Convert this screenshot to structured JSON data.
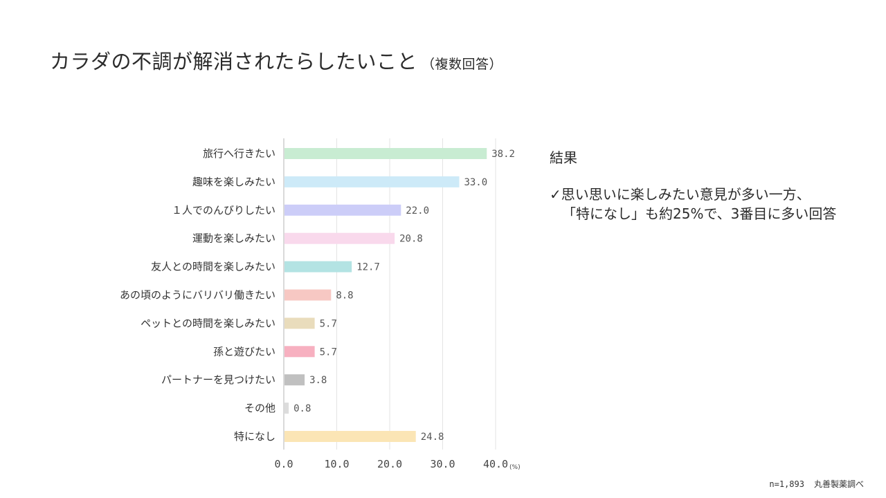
{
  "title": {
    "main": "カラダの不調が解消されたらしたいこと",
    "sub": "（複数回答）"
  },
  "chart_data": {
    "type": "bar",
    "orientation": "horizontal",
    "categories": [
      "旅行へ行きたい",
      "趣味を楽しみたい",
      "１人でのんびりしたい",
      "運動を楽しみたい",
      "友人との時間を楽しみたい",
      "あの頃のようにバリバリ働きたい",
      "ペットとの時間を楽しみたい",
      "孫と遊びたい",
      "パートナーを見つけたい",
      "その他",
      "特になし"
    ],
    "values": [
      38.2,
      33.0,
      22.0,
      20.8,
      12.7,
      8.8,
      5.7,
      5.7,
      3.8,
      0.8,
      24.8
    ],
    "value_labels": [
      "38.2",
      "33.0",
      "22.0",
      "20.8",
      "12.7",
      "8.8",
      "5.7",
      "5.7",
      "3.8",
      "0.8",
      "24.8"
    ],
    "colors": [
      "#c8ecd2",
      "#cdeaf8",
      "#cccdf8",
      "#f9d9ec",
      "#b3e3e3",
      "#f7c8c3",
      "#e9dcbc",
      "#f7b0c0",
      "#c0c0c0",
      "#dcdcdc",
      "#fbe5b5"
    ],
    "xlim": [
      0,
      40
    ],
    "xticks": [
      0,
      10,
      20,
      30,
      40
    ],
    "xtick_labels": [
      "0.0",
      "10.0",
      "20.0",
      "30.0",
      "40.0"
    ],
    "x_unit": "(%)",
    "grid": true
  },
  "result": {
    "heading": "結果",
    "lines": [
      "✓思い思いに楽しみたい意見が多い一方、",
      "「特になし」も約25%で、3番目に多い回答"
    ]
  },
  "source": {
    "sample": "n=1,893",
    "credit": "丸善製薬調べ"
  }
}
